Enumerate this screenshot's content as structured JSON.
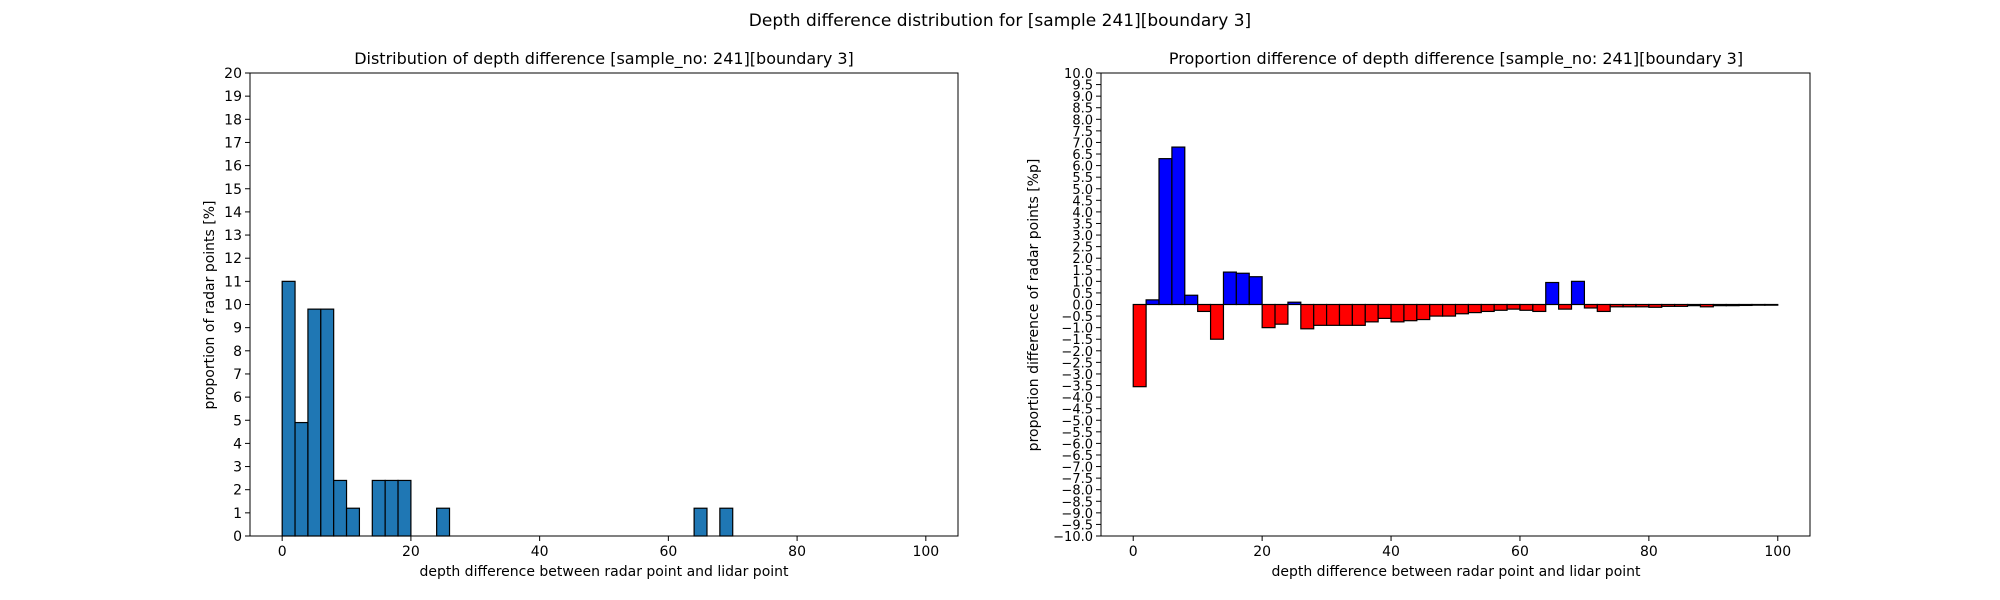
{
  "figure": {
    "suptitle": "Depth difference distribution for [sample 241][boundary 3]"
  },
  "chart_data": [
    {
      "type": "bar",
      "title": "Distribution of depth difference [sample_no: 241][boundary 3]",
      "xlabel": "depth difference between radar point and lidar point",
      "ylabel": "proportion of radar points [%]",
      "xlim": [
        -5,
        105
      ],
      "ylim": [
        0,
        20
      ],
      "xticks": [
        0,
        20,
        40,
        60,
        80,
        100
      ],
      "yticks": [
        0,
        1,
        2,
        3,
        4,
        5,
        6,
        7,
        8,
        9,
        10,
        11,
        12,
        13,
        14,
        15,
        16,
        17,
        18,
        19,
        20
      ],
      "bin_width": 2,
      "bar_color": "#1f77b4",
      "edge_color": "#000000",
      "bins": [
        {
          "x": 0,
          "value": 11.0
        },
        {
          "x": 2,
          "value": 4.9
        },
        {
          "x": 4,
          "value": 9.8
        },
        {
          "x": 6,
          "value": 9.8
        },
        {
          "x": 8,
          "value": 2.4
        },
        {
          "x": 10,
          "value": 1.2
        },
        {
          "x": 14,
          "value": 2.4
        },
        {
          "x": 16,
          "value": 2.4
        },
        {
          "x": 18,
          "value": 2.4
        },
        {
          "x": 24,
          "value": 1.2
        },
        {
          "x": 64,
          "value": 1.2
        },
        {
          "x": 68,
          "value": 1.2
        }
      ]
    },
    {
      "type": "bar",
      "title": "Proportion difference of depth difference [sample_no: 241][boundary 3]",
      "xlabel": "depth difference between radar point and lidar point",
      "ylabel": "proportion difference of radar points [%p]",
      "xlim": [
        -5,
        105
      ],
      "ylim": [
        -10,
        10
      ],
      "xticks": [
        0,
        20,
        40,
        60,
        80,
        100
      ],
      "yticks": [
        -10.0,
        -9.5,
        -9.0,
        -8.5,
        -8.0,
        -7.5,
        -7.0,
        -6.5,
        -6.0,
        -5.5,
        -5.0,
        -4.5,
        -4.0,
        -3.5,
        -3.0,
        -2.5,
        -2.0,
        -1.5,
        -1.0,
        -0.5,
        0.0,
        0.5,
        1.0,
        1.5,
        2.0,
        2.5,
        3.0,
        3.5,
        4.0,
        4.5,
        5.0,
        5.5,
        6.0,
        6.5,
        7.0,
        7.5,
        8.0,
        8.5,
        9.0,
        9.5,
        10.0
      ],
      "bin_width": 2,
      "positive_color": "#0000ff",
      "negative_color": "#ff0000",
      "edge_color": "#000000",
      "bins": [
        {
          "x": 0,
          "value": -3.55
        },
        {
          "x": 2,
          "value": 0.2
        },
        {
          "x": 4,
          "value": 6.3
        },
        {
          "x": 6,
          "value": 6.8
        },
        {
          "x": 8,
          "value": 0.4
        },
        {
          "x": 10,
          "value": -0.3
        },
        {
          "x": 12,
          "value": -1.5
        },
        {
          "x": 14,
          "value": 1.4
        },
        {
          "x": 16,
          "value": 1.35
        },
        {
          "x": 18,
          "value": 1.2
        },
        {
          "x": 20,
          "value": -1.0
        },
        {
          "x": 22,
          "value": -0.85
        },
        {
          "x": 24,
          "value": 0.1
        },
        {
          "x": 26,
          "value": -1.05
        },
        {
          "x": 28,
          "value": -0.9
        },
        {
          "x": 30,
          "value": -0.9
        },
        {
          "x": 32,
          "value": -0.9
        },
        {
          "x": 34,
          "value": -0.9
        },
        {
          "x": 36,
          "value": -0.75
        },
        {
          "x": 38,
          "value": -0.6
        },
        {
          "x": 40,
          "value": -0.75
        },
        {
          "x": 42,
          "value": -0.7
        },
        {
          "x": 44,
          "value": -0.65
        },
        {
          "x": 46,
          "value": -0.5
        },
        {
          "x": 48,
          "value": -0.5
        },
        {
          "x": 50,
          "value": -0.4
        },
        {
          "x": 52,
          "value": -0.35
        },
        {
          "x": 54,
          "value": -0.3
        },
        {
          "x": 56,
          "value": -0.25
        },
        {
          "x": 58,
          "value": -0.2
        },
        {
          "x": 60,
          "value": -0.25
        },
        {
          "x": 62,
          "value": -0.3
        },
        {
          "x": 64,
          "value": 0.95
        },
        {
          "x": 66,
          "value": -0.2
        },
        {
          "x": 68,
          "value": 1.0
        },
        {
          "x": 70,
          "value": -0.15
        },
        {
          "x": 72,
          "value": -0.3
        },
        {
          "x": 74,
          "value": -0.1
        },
        {
          "x": 76,
          "value": -0.1
        },
        {
          "x": 78,
          "value": -0.1
        },
        {
          "x": 80,
          "value": -0.12
        },
        {
          "x": 82,
          "value": -0.08
        },
        {
          "x": 84,
          "value": -0.08
        },
        {
          "x": 86,
          "value": -0.05
        },
        {
          "x": 88,
          "value": -0.1
        },
        {
          "x": 90,
          "value": -0.05
        },
        {
          "x": 92,
          "value": -0.05
        },
        {
          "x": 94,
          "value": -0.04
        },
        {
          "x": 96,
          "value": -0.03
        },
        {
          "x": 98,
          "value": -0.03
        }
      ]
    }
  ]
}
